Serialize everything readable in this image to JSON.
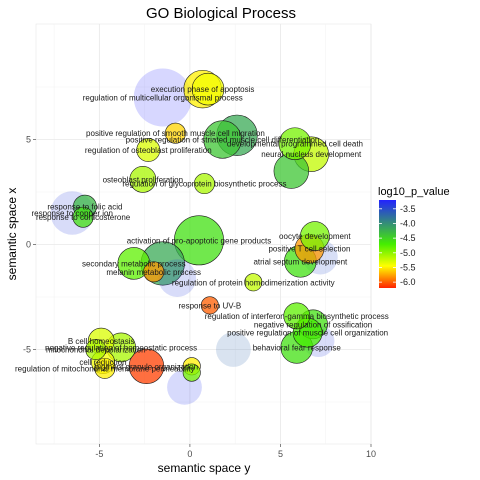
{
  "chart_data": {
    "type": "scatter",
    "title": "GO Biological Process",
    "xlabel": "semantic space y",
    "ylabel": "semantic space x",
    "xlim": [
      -8.5,
      10
    ],
    "ylim": [
      -9.5,
      10.5
    ],
    "xticks": [
      -5,
      0,
      5,
      10
    ],
    "yticks": [
      -5,
      0,
      5
    ],
    "grid": true,
    "legend": {
      "title": "log10_p_value",
      "position": "right",
      "ticks": [
        -3.5,
        -4.0,
        -4.5,
        -5.0,
        -5.5,
        -6.0
      ],
      "range": [
        -3.2,
        -6.2
      ]
    },
    "points": [
      {
        "x": -1.5,
        "y": 7.0,
        "size": 20,
        "p": -3.2,
        "label": "regulation of multicellular organismal process"
      },
      {
        "x": 0.7,
        "y": 7.4,
        "size": 13,
        "p": -5.5,
        "label": "execution phase of apoptosis"
      },
      {
        "x": 1.0,
        "y": 7.4,
        "size": 11,
        "p": -5.4,
        "label": ""
      },
      {
        "x": -0.8,
        "y": 5.3,
        "size": 7,
        "p": -5.6,
        "label": "positive regulation of smooth muscle cell migration"
      },
      {
        "x": -2.3,
        "y": 4.5,
        "size": 8,
        "p": -5.3,
        "label": "regulation of osteoblast proliferation"
      },
      {
        "x": 1.8,
        "y": 5.0,
        "size": 13,
        "p": -4.4,
        "label": "positive regulation of striated muscle cell differentiation"
      },
      {
        "x": 2.6,
        "y": 5.2,
        "size": 14,
        "p": -4.2,
        "label": ""
      },
      {
        "x": 5.8,
        "y": 4.8,
        "size": 11,
        "p": -4.9,
        "label": "developmental programmed cell death"
      },
      {
        "x": 6.7,
        "y": 4.3,
        "size": 12,
        "p": -5.2,
        "label": "neural nucleus development"
      },
      {
        "x": 5.6,
        "y": 3.5,
        "size": 12,
        "p": -4.4,
        "label": ""
      },
      {
        "x": -2.6,
        "y": 3.1,
        "size": 9,
        "p": -5.1,
        "label": "osteoblast proliferation"
      },
      {
        "x": 0.8,
        "y": 2.9,
        "size": 7,
        "p": -5.1,
        "label": "regulation of glycoprotein biosynthetic process"
      },
      {
        "x": -6.5,
        "y": 1.5,
        "size": 15,
        "p": -3.4,
        "label": "response to copper ion"
      },
      {
        "x": -5.8,
        "y": 1.8,
        "size": 8,
        "p": -4.3,
        "label": "response to folic acid"
      },
      {
        "x": -5.9,
        "y": 1.3,
        "size": 7,
        "p": -4.6,
        "label": "response to corticosterone"
      },
      {
        "x": -1.5,
        "y": -0.9,
        "size": 15,
        "p": -4.2,
        "label": ""
      },
      {
        "x": 0.5,
        "y": 0.2,
        "size": 17,
        "p": -4.6,
        "label": "activation of pro-apoptotic gene products"
      },
      {
        "x": -0.7,
        "y": -1.6,
        "size": 13,
        "p": -3.4,
        "label": ""
      },
      {
        "x": -3.1,
        "y": -0.9,
        "size": 11,
        "p": -4.8,
        "label": "secondary metabolic process"
      },
      {
        "x": -2.0,
        "y": -1.3,
        "size": 7,
        "p": -5.8,
        "label": "melanin metabolic process"
      },
      {
        "x": 3.5,
        "y": -1.8,
        "size": 6,
        "p": -5.2,
        "label": "regulation of protein homodimerization activity"
      },
      {
        "x": 6.1,
        "y": -0.8,
        "size": 11,
        "p": -4.6,
        "label": "atrial septum development"
      },
      {
        "x": 7.2,
        "y": -0.6,
        "size": 12,
        "p": -3.5,
        "label": ""
      },
      {
        "x": 6.6,
        "y": -0.2,
        "size": 10,
        "p": -5.8,
        "label": "positive T cell selection"
      },
      {
        "x": 6.9,
        "y": 0.4,
        "size": 10,
        "p": -4.9,
        "label": "oocyte development"
      },
      {
        "x": 1.1,
        "y": -2.9,
        "size": 6,
        "p": -6.0,
        "label": "response to UV-B"
      },
      {
        "x": 5.9,
        "y": -3.4,
        "size": 9,
        "p": -4.8,
        "label": "regulation of interferon-gamma biosynthetic process"
      },
      {
        "x": 6.8,
        "y": -3.8,
        "size": 10,
        "p": -4.6,
        "label": "negative regulation of ossification"
      },
      {
        "x": 6.5,
        "y": -4.2,
        "size": 10,
        "p": -4.7,
        "label": "positive regulation of muscle cell organization"
      },
      {
        "x": 7.1,
        "y": -4.6,
        "size": 11,
        "p": -3.4,
        "label": ""
      },
      {
        "x": 5.9,
        "y": -4.9,
        "size": 11,
        "p": -4.6,
        "label": "behavioral fear response"
      },
      {
        "x": 2.4,
        "y": -5.0,
        "size": 12,
        "p": -3.7,
        "label": ""
      },
      {
        "x": -4.9,
        "y": -4.6,
        "size": 9,
        "p": -5.3,
        "label": "B cell homeostasis"
      },
      {
        "x": -5.2,
        "y": -5.0,
        "size": 7,
        "p": -5.1,
        "label": "mitochondrial depolarization"
      },
      {
        "x": -3.8,
        "y": -4.9,
        "size": 10,
        "p": -5.1,
        "label": "negative regulation of homeostatic process"
      },
      {
        "x": -4.8,
        "y": -5.6,
        "size": 8,
        "p": -5.4,
        "label": "cell reduction"
      },
      {
        "x": -4.7,
        "y": -5.9,
        "size": 7,
        "p": -5.5,
        "label": "regulation of mitochondrial membrane permeability"
      },
      {
        "x": -2.4,
        "y": -5.8,
        "size": 12,
        "p": -6.1,
        "label": "pigment granule organization"
      },
      {
        "x": 0.1,
        "y": -5.8,
        "size": 6,
        "p": -5.5,
        "label": ""
      },
      {
        "x": -0.3,
        "y": -6.8,
        "size": 12,
        "p": -3.3,
        "label": ""
      },
      {
        "x": 0.1,
        "y": -6.1,
        "size": 6,
        "p": -4.9,
        "label": ""
      }
    ]
  }
}
